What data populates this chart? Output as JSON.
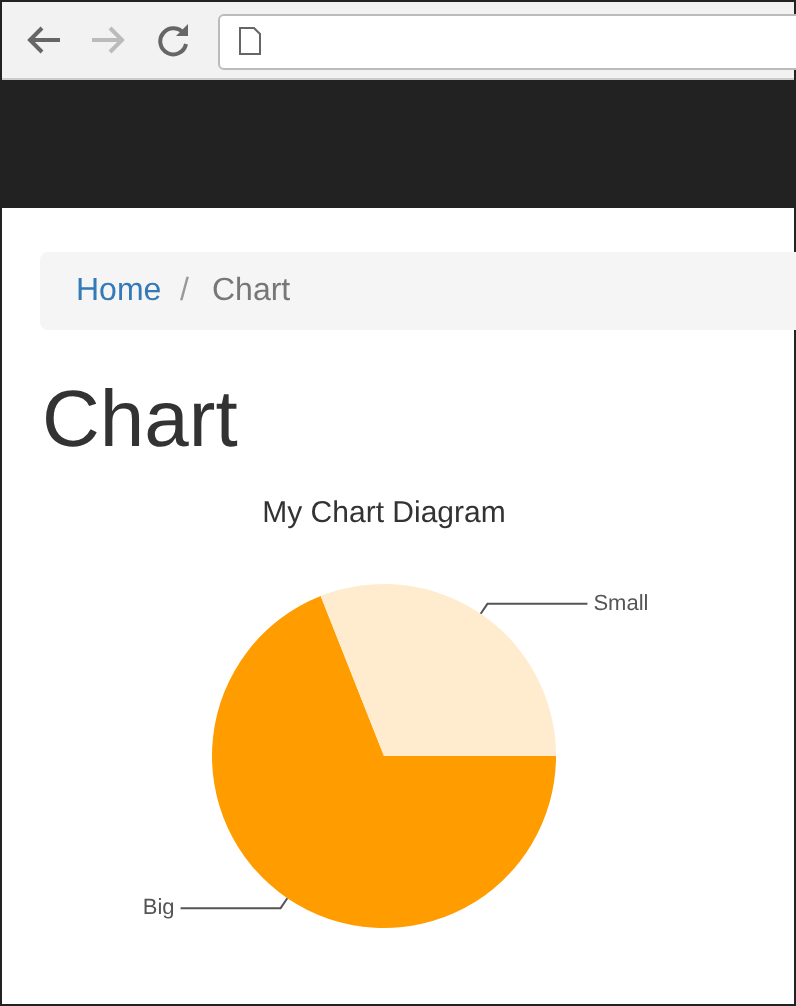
{
  "chart_data": {
    "type": "pie",
    "title": "My Chart Diagram",
    "categories": [
      "Big",
      "Small"
    ],
    "values": [
      69,
      31
    ],
    "colors": [
      "#ff9c00",
      "#ffebcd"
    ],
    "annotations": [
      "Home",
      "/",
      "Chart",
      "Chart"
    ]
  }
}
